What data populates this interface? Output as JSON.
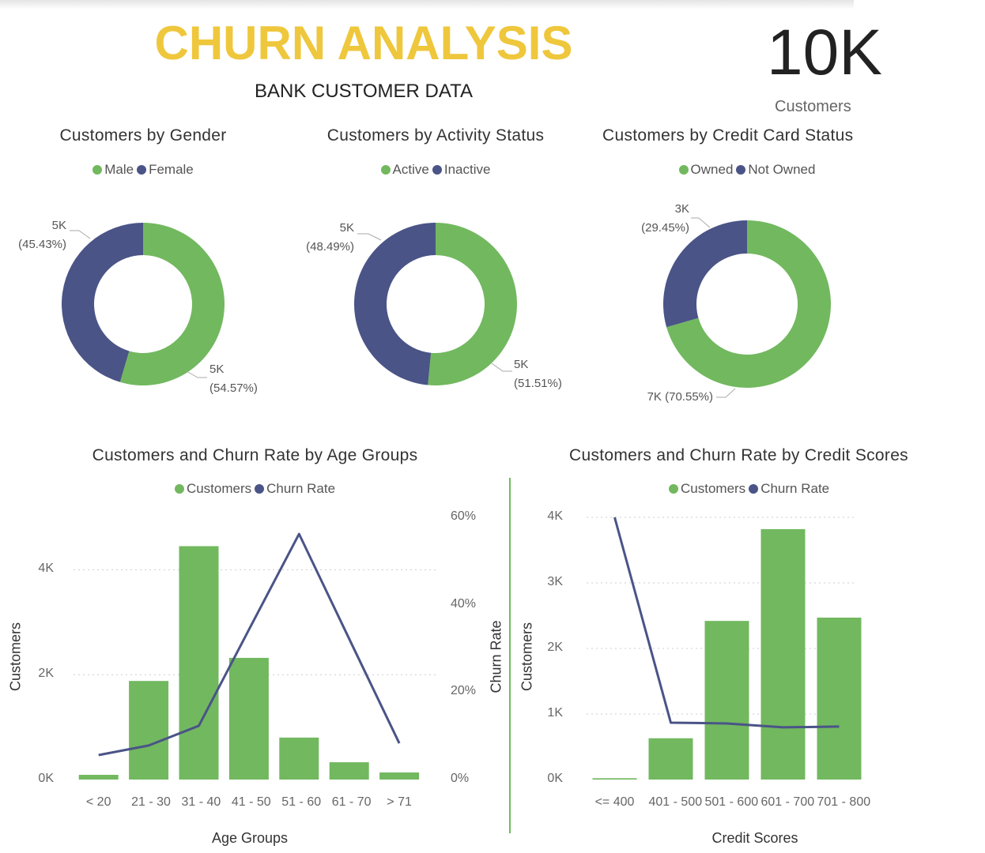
{
  "header": {
    "title": "CHURN ANALYSIS",
    "subtitle": "BANK CUSTOMER DATA",
    "kpi_value": "10K",
    "kpi_label": "Customers"
  },
  "chart_data": [
    {
      "type": "donut",
      "title": "Customers by Gender",
      "categories": [
        "Male",
        "Female"
      ],
      "values": [
        54.57,
        45.43
      ],
      "count_labels": [
        "5K",
        "5K"
      ],
      "value_labels": [
        "(54.57%)",
        "(45.43%)"
      ],
      "colors": [
        "#72b85f",
        "#4a5487"
      ]
    },
    {
      "type": "donut",
      "title": "Customers by Activity Status",
      "categories": [
        "Active",
        "Inactive"
      ],
      "values": [
        51.51,
        48.49
      ],
      "count_labels": [
        "5K",
        "5K"
      ],
      "value_labels": [
        "(51.51%)",
        "(48.49%)"
      ],
      "colors": [
        "#72b85f",
        "#4a5487"
      ]
    },
    {
      "type": "donut",
      "title": "Customers by Credit Card Status",
      "categories": [
        "Owned",
        "Not Owned"
      ],
      "values": [
        70.55,
        29.45
      ],
      "count_labels": [
        "7K",
        "3K"
      ],
      "value_labels": [
        "(70.55%)",
        "(29.45%)"
      ],
      "colors": [
        "#72b85f",
        "#4a5487"
      ]
    },
    {
      "type": "bar-line",
      "title": "Customers and Churn Rate by Age Groups",
      "x_label": "Age Groups",
      "y_label": "Customers",
      "y2_label": "Churn Rate",
      "categories": [
        "< 20",
        "21 - 30",
        "31 - 40",
        "41 - 50",
        "51 - 60",
        "61 - 70",
        "> 71"
      ],
      "series": [
        {
          "name": "Customers",
          "type": "bar",
          "color": "#72b85f",
          "values": [
            90,
            1880,
            4450,
            2320,
            800,
            330,
            135
          ]
        },
        {
          "name": "Churn Rate",
          "type": "line",
          "axis": "y2",
          "color": "#4a5487",
          "values": [
            5.6,
            7.8,
            12.3,
            34.3,
            56.2,
            32.2,
            8.3
          ]
        }
      ],
      "ylim": [
        0,
        5000
      ],
      "yticks": [
        {
          "value": 0,
          "label": "0K"
        },
        {
          "value": 2000,
          "label": "2K"
        },
        {
          "value": 4000,
          "label": "4K"
        }
      ],
      "y2lim": [
        0,
        60
      ],
      "y2ticks": [
        {
          "value": 0,
          "label": "0%"
        },
        {
          "value": 20,
          "label": "20%"
        },
        {
          "value": 40,
          "label": "40%"
        },
        {
          "value": 60,
          "label": "60%"
        }
      ],
      "grid": true
    },
    {
      "type": "bar-line",
      "title": "Customers and Churn Rate by Credit Scores",
      "x_label": "Credit Scores",
      "y_label": "Customers",
      "categories": [
        "<= 400",
        "401 - 500",
        "501 - 600",
        "601 - 700",
        "701 - 800"
      ],
      "series": [
        {
          "name": "Customers",
          "type": "bar",
          "color": "#72b85f",
          "values": [
            20,
            630,
            2420,
            3820,
            2470
          ]
        },
        {
          "name": "Churn Rate",
          "type": "line",
          "axis": "y2",
          "color": "#4a5487",
          "values": [
            100,
            21.7,
            21.4,
            19.9,
            20.2
          ]
        }
      ],
      "ylim": [
        0,
        4000
      ],
      "yticks": [
        {
          "value": 0,
          "label": "0K"
        },
        {
          "value": 1000,
          "label": "1K"
        },
        {
          "value": 2000,
          "label": "2K"
        },
        {
          "value": 3000,
          "label": "3K"
        },
        {
          "value": 4000,
          "label": "4K"
        }
      ],
      "y2lim": [
        0,
        100
      ],
      "grid": true
    }
  ]
}
